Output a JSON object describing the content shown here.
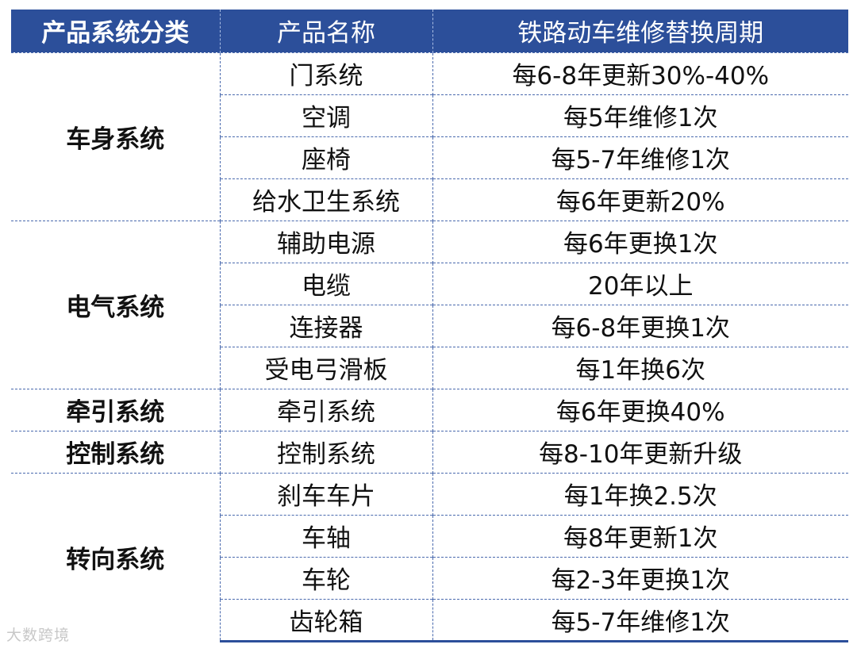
{
  "table": {
    "headers": [
      "产品系统分类",
      "产品名称",
      "铁路动车维修替换周期"
    ],
    "groups": [
      {
        "category": "车身系统",
        "rows": [
          {
            "product": "门系统",
            "cycle": "每6-8年更新30%-40%"
          },
          {
            "product": "空调",
            "cycle": "每5年维修1次"
          },
          {
            "product": "座椅",
            "cycle": "每5-7年维修1次"
          },
          {
            "product": "给水卫生系统",
            "cycle": "每6年更新20%"
          }
        ]
      },
      {
        "category": "电气系统",
        "rows": [
          {
            "product": "辅助电源",
            "cycle": "每6年更换1次"
          },
          {
            "product": "电缆",
            "cycle": "20年以上"
          },
          {
            "product": "连接器",
            "cycle": "每6-8年更换1次"
          },
          {
            "product": "受电弓滑板",
            "cycle": "每1年换6次"
          }
        ]
      },
      {
        "category": "牵引系统",
        "rows": [
          {
            "product": "牵引系统",
            "cycle": "每6年更换40%"
          }
        ]
      },
      {
        "category": "控制系统",
        "rows": [
          {
            "product": "控制系统",
            "cycle": "每8-10年更新升级"
          }
        ]
      },
      {
        "category": "转向系统",
        "rows": [
          {
            "product": "刹车车片",
            "cycle": "每1年换2.5次"
          },
          {
            "product": "车轴",
            "cycle": "每8年更新1次"
          },
          {
            "product": "车轮",
            "cycle": "每2-3年更换1次"
          },
          {
            "product": "齿轮箱",
            "cycle": "每5-7年维修1次"
          }
        ]
      }
    ]
  },
  "watermark": "大数跨境",
  "colors": {
    "header_bg": "#2c4f9a",
    "header_text": "#ffffff",
    "grid_line": "#4a6aae"
  }
}
